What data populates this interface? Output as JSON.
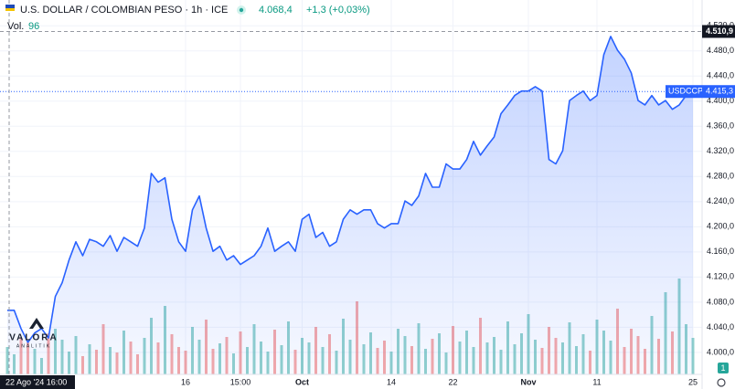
{
  "header": {
    "title": "U.S. DOLLAR / COLOMBIAN PESO · 1h · ICE",
    "price": "4.068,4",
    "change": "+1,3 (+0,03%)",
    "volume_label": "Vol.",
    "volume_value": "96"
  },
  "logo": {
    "name": "VALORA",
    "tagline": "ANALITIK"
  },
  "scale_badge": "1",
  "chart_data": {
    "type": "line",
    "categories": [
      null,
      null,
      null,
      null,
      null,
      null,
      null,
      null,
      null,
      null,
      null,
      null,
      null,
      null,
      null,
      null,
      null,
      null,
      null,
      null,
      null,
      null,
      null,
      null,
      null,
      null,
      "16",
      null,
      null,
      null,
      null,
      null,
      null,
      null,
      "15:00",
      null,
      null,
      null,
      null,
      null,
      null,
      null,
      null,
      "Oct",
      null,
      null,
      null,
      null,
      null,
      null,
      null,
      null,
      null,
      null,
      null,
      null,
      "14",
      null,
      null,
      null,
      null,
      null,
      null,
      null,
      null,
      "22",
      null,
      null,
      null,
      null,
      null,
      null,
      null,
      null,
      null,
      null,
      "Nov",
      null,
      null,
      null,
      null,
      null,
      null,
      null,
      null,
      null,
      "11",
      null,
      null,
      null,
      null,
      null,
      null,
      null,
      null,
      null,
      null,
      null,
      null,
      null,
      "25"
    ],
    "series": [
      {
        "name": "USDCCP",
        "color": "#2962ff",
        "values": [
          4067,
          4067,
          4038,
          4016,
          4031,
          4038,
          4023,
          4089,
          4111,
          4147,
          4176,
          4154,
          4180,
          4176,
          4169,
          4186,
          4161,
          4183,
          4176,
          4169,
          4198,
          4285,
          4271,
          4278,
          4212,
          4176,
          4161,
          4227,
          4249,
          4198,
          4161,
          4169,
          4147,
          4154,
          4140,
          4147,
          4154,
          4169,
          4198,
          4161,
          4169,
          4176,
          4161,
          4212,
          4220,
          4183,
          4191,
          4169,
          4176,
          4212,
          4227,
          4220,
          4227,
          4227,
          4205,
          4198,
          4205,
          4205,
          4241,
          4234,
          4249,
          4285,
          4263,
          4263,
          4300,
          4292,
          4292,
          4307,
          4336,
          4314,
          4329,
          4343,
          4380,
          4394,
          4409,
          4416,
          4416,
          4423,
          4416,
          4307,
          4300,
          4321,
          4401,
          4409,
          4416,
          4401,
          4409,
          4474,
          4503,
          4481,
          4467,
          4445,
          4401,
          4394,
          4409,
          4394,
          4401,
          4387,
          4394,
          4409,
          4415.3
        ]
      }
    ],
    "volume": {
      "up_color": "rgba(38,166,154,0.5)",
      "down_color": "rgba(239,83,80,0.5)",
      "values": [
        30,
        22,
        40,
        35,
        28,
        18,
        45,
        50,
        38,
        25,
        42,
        20,
        33,
        27,
        55,
        30,
        24,
        48,
        36,
        22,
        40,
        62,
        35,
        75,
        44,
        30,
        26,
        52,
        38,
        60,
        28,
        34,
        41,
        23,
        47,
        30,
        55,
        36,
        25,
        49,
        32,
        58,
        27,
        40,
        35,
        52,
        30,
        44,
        26,
        61,
        38,
        80,
        33,
        46,
        29,
        37,
        25,
        50,
        42,
        31,
        56,
        28,
        39,
        45,
        24,
        53,
        36,
        48,
        30,
        62,
        35,
        41,
        27,
        58,
        33,
        45,
        66,
        38,
        29,
        52,
        40,
        35,
        57,
        31,
        44,
        26,
        60,
        48,
        37,
        72,
        30,
        50,
        42,
        28,
        64,
        39,
        90,
        47,
        105,
        55,
        40
      ]
    },
    "ylim": [
      3965,
      4561
    ],
    "yticks": [
      {
        "value": 4000,
        "label": "4.000,0"
      },
      {
        "value": 4040,
        "label": "4.040,0"
      },
      {
        "value": 4080,
        "label": "4.080,0"
      },
      {
        "value": 4120,
        "label": "4.120,0"
      },
      {
        "value": 4160,
        "label": "4.160,0"
      },
      {
        "value": 4200,
        "label": "4.200,0"
      },
      {
        "value": 4240,
        "label": "4.240,0"
      },
      {
        "value": 4280,
        "label": "4.280,0"
      },
      {
        "value": 4320,
        "label": "4.320,0"
      },
      {
        "value": 4360,
        "label": "4.360,0"
      },
      {
        "value": 4400,
        "label": "4.400,0"
      },
      {
        "value": 4440,
        "label": "4.440,0"
      },
      {
        "value": 4480,
        "label": "4.480,0"
      },
      {
        "value": 4520,
        "label": "4.520,0"
      }
    ],
    "high": {
      "value": 4510.9,
      "label": "4.510,9"
    },
    "last_price": {
      "value": 4415.3,
      "label": "4.415,3"
    },
    "crosshair_label": "22 Ago '24 16:00",
    "grid": true
  }
}
